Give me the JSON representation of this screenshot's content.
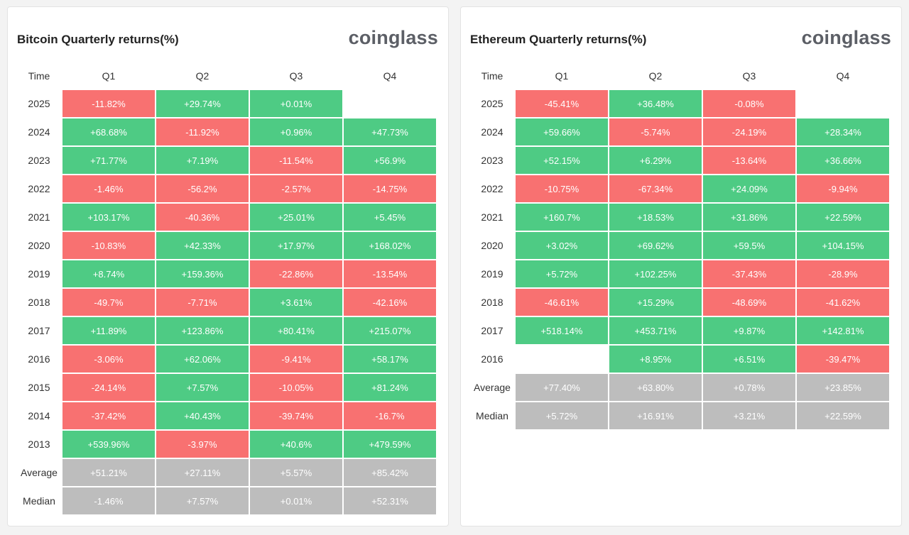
{
  "colors": {
    "positive": "#4ecb84",
    "negative": "#f87171",
    "statistic": "#bdbdbd"
  },
  "chart_data": [
    {
      "type": "table",
      "title": "Bitcoin Quarterly returns(%)",
      "brand": "coinglass",
      "header": [
        "Time",
        "Q1",
        "Q2",
        "Q3",
        "Q4"
      ],
      "rows": [
        {
          "label": "2025",
          "cells": [
            "-11.82%",
            "+29.74%",
            "+0.01%",
            ""
          ]
        },
        {
          "label": "2024",
          "cells": [
            "+68.68%",
            "-11.92%",
            "+0.96%",
            "+47.73%"
          ]
        },
        {
          "label": "2023",
          "cells": [
            "+71.77%",
            "+7.19%",
            "-11.54%",
            "+56.9%"
          ]
        },
        {
          "label": "2022",
          "cells": [
            "-1.46%",
            "-56.2%",
            "-2.57%",
            "-14.75%"
          ]
        },
        {
          "label": "2021",
          "cells": [
            "+103.17%",
            "-40.36%",
            "+25.01%",
            "+5.45%"
          ]
        },
        {
          "label": "2020",
          "cells": [
            "-10.83%",
            "+42.33%",
            "+17.97%",
            "+168.02%"
          ]
        },
        {
          "label": "2019",
          "cells": [
            "+8.74%",
            "+159.36%",
            "-22.86%",
            "-13.54%"
          ]
        },
        {
          "label": "2018",
          "cells": [
            "-49.7%",
            "-7.71%",
            "+3.61%",
            "-42.16%"
          ]
        },
        {
          "label": "2017",
          "cells": [
            "+11.89%",
            "+123.86%",
            "+80.41%",
            "+215.07%"
          ]
        },
        {
          "label": "2016",
          "cells": [
            "-3.06%",
            "+62.06%",
            "-9.41%",
            "+58.17%"
          ]
        },
        {
          "label": "2015",
          "cells": [
            "-24.14%",
            "+7.57%",
            "-10.05%",
            "+81.24%"
          ]
        },
        {
          "label": "2014",
          "cells": [
            "-37.42%",
            "+40.43%",
            "-39.74%",
            "-16.7%"
          ]
        },
        {
          "label": "2013",
          "cells": [
            "+539.96%",
            "-3.97%",
            "+40.6%",
            "+479.59%"
          ]
        }
      ],
      "stats": [
        {
          "label": "Average",
          "cells": [
            "+51.21%",
            "+27.11%",
            "+5.57%",
            "+85.42%"
          ]
        },
        {
          "label": "Median",
          "cells": [
            "-1.46%",
            "+7.57%",
            "+0.01%",
            "+52.31%"
          ]
        }
      ]
    },
    {
      "type": "table",
      "title": "Ethereum Quarterly returns(%)",
      "brand": "coinglass",
      "header": [
        "Time",
        "Q1",
        "Q2",
        "Q3",
        "Q4"
      ],
      "rows": [
        {
          "label": "2025",
          "cells": [
            "-45.41%",
            "+36.48%",
            "-0.08%",
            ""
          ]
        },
        {
          "label": "2024",
          "cells": [
            "+59.66%",
            "-5.74%",
            "-24.19%",
            "+28.34%"
          ]
        },
        {
          "label": "2023",
          "cells": [
            "+52.15%",
            "+6.29%",
            "-13.64%",
            "+36.66%"
          ]
        },
        {
          "label": "2022",
          "cells": [
            "-10.75%",
            "-67.34%",
            "+24.09%",
            "-9.94%"
          ]
        },
        {
          "label": "2021",
          "cells": [
            "+160.7%",
            "+18.53%",
            "+31.86%",
            "+22.59%"
          ]
        },
        {
          "label": "2020",
          "cells": [
            "+3.02%",
            "+69.62%",
            "+59.5%",
            "+104.15%"
          ]
        },
        {
          "label": "2019",
          "cells": [
            "+5.72%",
            "+102.25%",
            "-37.43%",
            "-28.9%"
          ]
        },
        {
          "label": "2018",
          "cells": [
            "-46.61%",
            "+15.29%",
            "-48.69%",
            "-41.62%"
          ]
        },
        {
          "label": "2017",
          "cells": [
            "+518.14%",
            "+453.71%",
            "+9.87%",
            "+142.81%"
          ]
        },
        {
          "label": "2016",
          "cells": [
            "",
            "+8.95%",
            "+6.51%",
            "-39.47%"
          ]
        }
      ],
      "stats": [
        {
          "label": "Average",
          "cells": [
            "+77.40%",
            "+63.80%",
            "+0.78%",
            "+23.85%"
          ]
        },
        {
          "label": "Median",
          "cells": [
            "+5.72%",
            "+16.91%",
            "+3.21%",
            "+22.59%"
          ]
        }
      ]
    }
  ]
}
